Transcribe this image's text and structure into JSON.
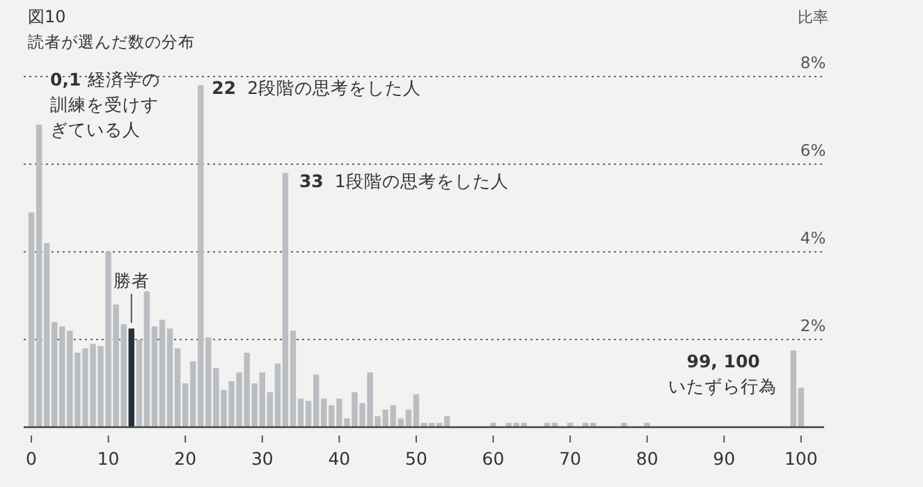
{
  "chart_data": {
    "type": "histogram",
    "title": "図10",
    "subtitle": "読者が選んだ数の分布",
    "ylabel": "比率",
    "bins": [
      -0.5,
      0.5,
      1.5,
      2.5,
      3.5,
      4.5,
      5.5,
      6.5,
      7.5,
      8.5,
      9.5,
      10.5,
      11.5,
      12.5,
      13.5,
      14.5,
      15.5,
      16.5,
      17.5,
      18.5,
      19.5,
      20.5,
      21.5,
      22.5,
      23.5,
      24.5,
      25.5,
      26.5,
      27.5,
      28.5,
      29.5,
      30.5,
      31.5,
      32.5,
      33.5,
      34.5,
      35.5,
      36.5,
      37.5,
      38.5,
      39.5,
      40.5,
      41.5,
      42.5,
      43.5,
      44.5,
      45.5,
      46.5,
      47.5,
      48.5,
      49.5,
      50.5,
      51.5,
      52.5,
      53.5,
      54.5,
      55.5,
      56.5,
      57.5,
      58.5,
      59.5,
      60.5,
      61.5,
      62.5,
      63.5,
      64.5,
      65.5,
      66.5,
      67.5,
      68.5,
      69.5,
      70.5,
      71.5,
      72.5,
      73.5,
      74.5,
      75.5,
      76.5,
      77.5,
      78.5,
      79.5,
      80.5,
      81.5,
      82.5,
      83.5,
      84.5,
      85.5,
      86.5,
      87.5,
      88.5,
      89.5,
      90.5,
      91.5,
      92.5,
      93.5,
      94.5,
      95.5,
      96.5,
      97.5,
      98.5,
      99.5,
      100.5
    ],
    "values": [
      4.9,
      6.9,
      4.2,
      2.4,
      2.3,
      2.2,
      1.7,
      1.8,
      1.9,
      1.85,
      4.0,
      2.8,
      2.35,
      2.25,
      2.0,
      3.1,
      2.3,
      2.45,
      2.25,
      1.8,
      1.0,
      1.5,
      7.8,
      2.05,
      1.35,
      0.85,
      1.05,
      1.25,
      1.7,
      1.0,
      1.25,
      0.8,
      1.45,
      5.8,
      2.2,
      0.65,
      0.6,
      1.2,
      0.65,
      0.5,
      0.65,
      0.2,
      0.8,
      0.55,
      1.25,
      0.25,
      0.4,
      0.5,
      0.2,
      0.4,
      0.75,
      0.1,
      0.1,
      0.1,
      0.25,
      0,
      0,
      0,
      0,
      0,
      0.1,
      0,
      0.1,
      0.1,
      0.1,
      0,
      0,
      0.1,
      0.1,
      0,
      0.1,
      0,
      0.1,
      0.1,
      0,
      0,
      0,
      0.1,
      0,
      0,
      0.1,
      0,
      0,
      0,
      0,
      0,
      0,
      0,
      0,
      0,
      0,
      0,
      0,
      0,
      0,
      0,
      0,
      0,
      0,
      1.75,
      0.9
    ],
    "colors": [
      "#babec2",
      "#babec2",
      "#babec2",
      "#babec2",
      "#babec2",
      "#babec2",
      "#babec2",
      "#babec2",
      "#babec2",
      "#babec2",
      "#babec2",
      "#babec2",
      "#babec2",
      "#27313d",
      "#babec2",
      "#babec2",
      "#babec2",
      "#babec2",
      "#babec2",
      "#babec2",
      "#babec2",
      "#babec2",
      "#babec2",
      "#babec2",
      "#babec2",
      "#babec2",
      "#babec2",
      "#babec2",
      "#babec2",
      "#babec2",
      "#babec2",
      "#babec2",
      "#babec2",
      "#babec2",
      "#babec2",
      "#babec2",
      "#babec2",
      "#babec2",
      "#babec2",
      "#babec2",
      "#babec2",
      "#babec2",
      "#babec2",
      "#babec2",
      "#babec2",
      "#babec2",
      "#babec2",
      "#babec2",
      "#babec2",
      "#babec2",
      "#babec2",
      "#babec2",
      "#babec2",
      "#babec2",
      "#babec2",
      "#babec2",
      "#babec2",
      "#babec2",
      "#babec2",
      "#babec2",
      "#babec2",
      "#babec2",
      "#babec2",
      "#babec2",
      "#babec2",
      "#babec2",
      "#babec2",
      "#babec2",
      "#babec2",
      "#babec2",
      "#babec2",
      "#babec2",
      "#babec2",
      "#babec2",
      "#babec2",
      "#babec2",
      "#babec2",
      "#babec2",
      "#babec2",
      "#babec2",
      "#babec2",
      "#babec2",
      "#babec2",
      "#babec2",
      "#babec2",
      "#babec2",
      "#babec2",
      "#babec2",
      "#babec2",
      "#babec2",
      "#babec2",
      "#babec2",
      "#babec2",
      "#babec2",
      "#babec2",
      "#babec2",
      "#babec2",
      "#babec2",
      "#babec2",
      "#babec2",
      "#babec2"
    ],
    "xlim": [
      -1,
      103
    ],
    "xticks": [
      0,
      10,
      20,
      30,
      40,
      50,
      60,
      70,
      80,
      90,
      100
    ],
    "ylim": [
      0,
      8
    ],
    "yticks": [
      {
        "value": 2,
        "label": "2%"
      },
      {
        "value": 4,
        "label": "4%"
      },
      {
        "value": 6,
        "label": "6%"
      },
      {
        "value": 8,
        "label": "8%"
      }
    ],
    "grid": "y",
    "line_style": "dotted",
    "annotations": [
      {
        "text": "0,1 経済学の訓練を受けすぎている人",
        "x": 1,
        "y": 6.9
      },
      {
        "text": "22 2段階の思考をした人",
        "x": 22,
        "y": 7.8
      },
      {
        "text": "33 1段階の思考をした人",
        "x": 33,
        "y": 5.8
      },
      {
        "text": "勝者",
        "x": 13,
        "y": 2.25
      },
      {
        "text": "99, 100 いたずら行為",
        "x": 99,
        "y": 1.75
      }
    ]
  }
}
